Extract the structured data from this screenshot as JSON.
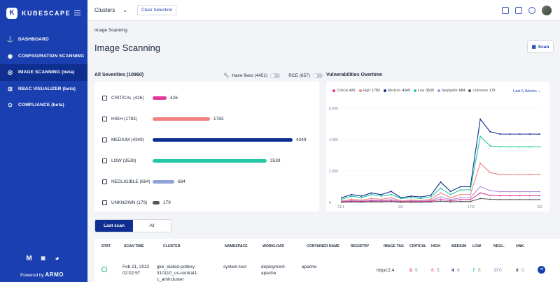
{
  "app": {
    "name": "KUBESCAPE",
    "logo_letter": "K",
    "powered_by_prefix": "Powered by",
    "powered_by_brand": "ARMO"
  },
  "sidebar": {
    "items": [
      {
        "label": "DASHBOARD",
        "icon": "anchor-icon",
        "glyph": "⚓",
        "active": false
      },
      {
        "label": "CONFIGURATION SCANNING",
        "icon": "globe-icon",
        "glyph": "◉",
        "active": false
      },
      {
        "label": "IMAGE SCANNING (beta)",
        "icon": "target-icon",
        "glyph": "◎",
        "active": true
      },
      {
        "label": "RBAC VISUALIZER (beta)",
        "icon": "flow-icon",
        "glyph": "⊞",
        "active": false
      },
      {
        "label": "COMPLIANCE (beta)",
        "icon": "shield-icon",
        "glyph": "⊙",
        "active": false
      }
    ],
    "social": [
      "gmail-icon",
      "discord-icon",
      "github-icon"
    ]
  },
  "topbar": {
    "cluster_label": "Clusters",
    "chevron": "⌄",
    "clear_label": "Clear Selection"
  },
  "page": {
    "breadcrumb": "Image Scanning",
    "title": "Image Scanning",
    "scan_label": "Scan"
  },
  "severities": {
    "header": "All Severities (10960)",
    "toggles": [
      {
        "label": "Have fixes (4451)",
        "on": false
      },
      {
        "label": "RCE (657)",
        "on": false
      }
    ],
    "max": 4349,
    "rows": [
      {
        "label": "CRITICAL (426)",
        "value": 426,
        "color": "#e0399b"
      },
      {
        "label": "HIGH (1783)",
        "value": 1783,
        "color": "#f28080"
      },
      {
        "label": "MEDIUM (4349)",
        "value": 4349,
        "color": "#0f2f90"
      },
      {
        "label": "LOW (3539)",
        "value": 3539,
        "color": "#22c7a3"
      },
      {
        "label": "NEGLIGIBLE (684)",
        "value": 684,
        "color": "#8fa3d6"
      },
      {
        "label": "UNKNOWN (179)",
        "value": 179,
        "color": "#555555"
      }
    ]
  },
  "vuln_chart_title": "Vulnerabilities Overtime",
  "chart_data": {
    "type": "line",
    "range_label": "Last 6 Weeks",
    "x_ticks": [
      "21/1",
      "3/2",
      "17/2",
      "3/3"
    ],
    "y_ticks": [
      "6,000",
      "4,000",
      "2,000",
      "0"
    ],
    "ylim": [
      0,
      6000
    ],
    "legend": [
      {
        "name": "Critical",
        "value": "426",
        "color": "#e0399b"
      },
      {
        "name": "High",
        "value": "1783",
        "color": "#f28080"
      },
      {
        "name": "Medium",
        "value": "4349",
        "color": "#0f2f90"
      },
      {
        "name": "Low",
        "value": "3539",
        "color": "#22c7a3"
      },
      {
        "name": "Negligible",
        "value": "684",
        "color": "#b08fd6"
      },
      {
        "name": "Unknown",
        "value": "179",
        "color": "#555555"
      }
    ],
    "x": [
      "21/1",
      "23/1",
      "25/1",
      "27/1",
      "29/1",
      "31/1",
      "3/2",
      "5/2",
      "7/2",
      "9/2",
      "11/2",
      "13/2",
      "15/2",
      "17/2",
      "19/2",
      "21/2",
      "23/2",
      "25/2",
      "27/2",
      "1/3",
      "3/3"
    ],
    "series": [
      {
        "name": "Medium",
        "color": "#0f2f90",
        "values": [
          300,
          500,
          400,
          600,
          500,
          700,
          300,
          400,
          350,
          450,
          1300,
          700,
          1000,
          1000,
          5300,
          4500,
          4350,
          4350,
          4350,
          4350,
          4349
        ]
      },
      {
        "name": "Low",
        "color": "#22c7a3",
        "values": [
          200,
          400,
          300,
          500,
          400,
          500,
          250,
          300,
          250,
          350,
          900,
          500,
          800,
          800,
          4200,
          3600,
          3540,
          3540,
          3540,
          3540,
          3539
        ]
      },
      {
        "name": "High",
        "color": "#f28080",
        "values": [
          100,
          200,
          150,
          250,
          200,
          300,
          100,
          150,
          120,
          200,
          600,
          300,
          500,
          500,
          2500,
          1900,
          1780,
          1780,
          1780,
          1780,
          1783
        ]
      },
      {
        "name": "Negligible",
        "color": "#b08fd6",
        "values": [
          60,
          120,
          90,
          150,
          120,
          180,
          60,
          100,
          80,
          120,
          350,
          180,
          300,
          300,
          1000,
          750,
          684,
          684,
          684,
          684,
          684
        ]
      },
      {
        "name": "Critical",
        "color": "#e0399b",
        "values": [
          40,
          80,
          60,
          90,
          80,
          100,
          40,
          60,
          50,
          70,
          200,
          100,
          180,
          180,
          600,
          450,
          426,
          426,
          426,
          426,
          426
        ]
      },
      {
        "name": "Unknown",
        "color": "#555555",
        "values": [
          10,
          30,
          20,
          40,
          30,
          50,
          10,
          20,
          15,
          25,
          80,
          40,
          60,
          60,
          250,
          200,
          179,
          179,
          179,
          179,
          179
        ]
      }
    ]
  },
  "scan_tabs": [
    {
      "label": "Last scan",
      "active": true
    },
    {
      "label": "All",
      "active": false
    }
  ],
  "table": {
    "headers": [
      "STAT.",
      "SCAN TIME",
      "CLUSTER",
      "NAMESPACE",
      "WORKLOAD",
      "CONTAINER NAME",
      "REGISTRY",
      "IMAGE TAG",
      "CRITICAL",
      "HIGH",
      "MEDIUM",
      "LOW",
      "NEGL.",
      "UNK."
    ],
    "row": {
      "scan_time": "Feb 21, 2022 02:02:57",
      "cluster": "gke_elated-pottery-310110_us-central1-c_amircluster",
      "namespace": "system-test",
      "workload": "deployment-apache",
      "container": "apache",
      "registry": "",
      "image_tag": "httpd:2.4",
      "critical": [
        "9",
        "5"
      ],
      "high": [
        "8",
        "5"
      ],
      "medium": [
        "4",
        "6"
      ],
      "low": [
        "7",
        "5"
      ],
      "negl": [
        "37",
        "0"
      ],
      "unk": [
        "8",
        "0"
      ],
      "arrow": "➜"
    }
  }
}
